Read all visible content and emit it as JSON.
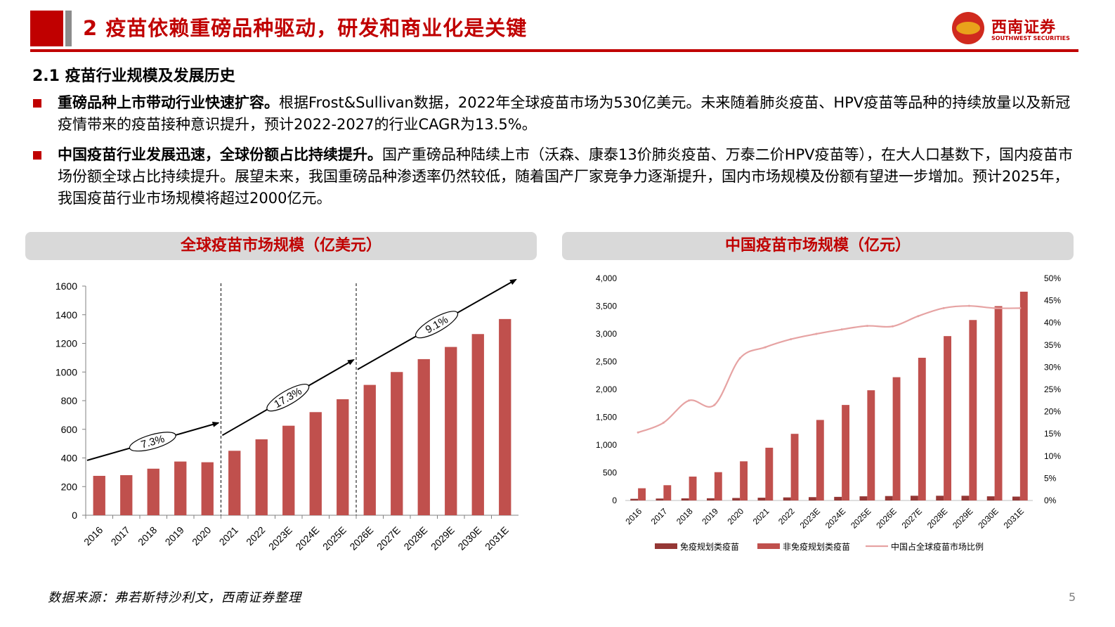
{
  "header": {
    "title": "2 疫苗依赖重磅品种驱动，研发和商业化是关键",
    "logo_cn": "西南证券",
    "logo_en": "SOUTHWEST SECURITIES"
  },
  "section": {
    "subtitle": "2.1 疫苗行业规模及发展历史"
  },
  "bullets": [
    {
      "lead": "重磅品种上市带动行业快速扩容。",
      "text": "根据Frost&Sullivan数据，2022年全球疫苗市场为530亿美元。未来随着肺炎疫苗、HPV疫苗等品种的持续放量以及新冠疫情带来的疫苗接种意识提升，预计2022-2027的行业CAGR为13.5%。"
    },
    {
      "lead": "中国疫苗行业发展迅速，全球份额占比持续提升。",
      "text": "国产重磅品种陆续上市（沃森、康泰13价肺炎疫苗、万泰二价HPV疫苗等），在大人口基数下，国内疫苗市场份额全球占比持续提升。展望未来，我国重磅品种渗透率仍然较低，随着国产厂家竞争力逐渐提升，国内市场规模及份额有望进一步增加。预计2025年，我国疫苗行业市场规模将超过2000亿元。"
    }
  ],
  "panels": {
    "left_title": "全球疫苗市场规模（亿美元）",
    "right_title": "中国疫苗市场规模（亿元）"
  },
  "chart_data": [
    {
      "type": "bar",
      "title": "全球疫苗市场规模（亿美元）",
      "categories": [
        "2016",
        "2017",
        "2018",
        "2019",
        "2020",
        "2021",
        "2022",
        "2023E",
        "2024E",
        "2025E",
        "2026E",
        "2027E",
        "2028E",
        "2029E",
        "2030E",
        "2031E"
      ],
      "values": [
        275,
        280,
        325,
        375,
        370,
        450,
        530,
        625,
        720,
        810,
        910,
        1000,
        1090,
        1175,
        1265,
        1370
      ],
      "ylim": [
        0,
        1600
      ],
      "yticks": [
        "0",
        "200",
        "400",
        "600",
        "800",
        "1000",
        "1200",
        "1400",
        "1600"
      ],
      "color": "#c0504d",
      "grid": false,
      "annotations": [
        "7.3%",
        "17.3%",
        "9.1%"
      ]
    },
    {
      "type": "bar",
      "title": "中国疫苗市场规模（亿元）",
      "categories": [
        "2016",
        "2017",
        "2018",
        "2019",
        "2020",
        "2021",
        "2022",
        "2023E",
        "2024E",
        "2025E",
        "2026E",
        "2027E",
        "2028E",
        "2029E",
        "2030E",
        "2031E"
      ],
      "series": [
        {
          "name": "免疫规划类疫苗",
          "type": "bar",
          "color": "#953735",
          "values": [
            30,
            35,
            38,
            40,
            45,
            50,
            55,
            60,
            65,
            75,
            80,
            85,
            85,
            85,
            75,
            70
          ]
        },
        {
          "name": "非免疫规划类疫苗",
          "type": "bar",
          "color": "#c0504d",
          "values": [
            220,
            275,
            430,
            510,
            705,
            950,
            1200,
            1450,
            1720,
            1985,
            2220,
            2570,
            2960,
            3250,
            3500,
            3760
          ]
        },
        {
          "name": "中国占全球疫苗市场比例",
          "type": "line",
          "axis": "right",
          "color": "#e6a3a3",
          "values": [
            15.3,
            17.5,
            22.5,
            21.5,
            32.0,
            34.5,
            36.3,
            37.5,
            38.5,
            39.3,
            39.2,
            41.5,
            43.3,
            43.8,
            43.3,
            43.3
          ]
        }
      ],
      "ylim": [
        0,
        4000
      ],
      "yticks": [
        "0",
        "500",
        "1,000",
        "1,500",
        "2,000",
        "2,500",
        "3,000",
        "3,500",
        "4,000"
      ],
      "y2lim": [
        0,
        50
      ],
      "y2ticks": [
        "0%",
        "5%",
        "10%",
        "15%",
        "20%",
        "25%",
        "30%",
        "35%",
        "40%",
        "45%",
        "50%"
      ],
      "legend": "bottom",
      "grid": false
    }
  ],
  "footer": {
    "source": "数据来源：弗若斯特沙利文，西南证券整理",
    "page": "5"
  }
}
